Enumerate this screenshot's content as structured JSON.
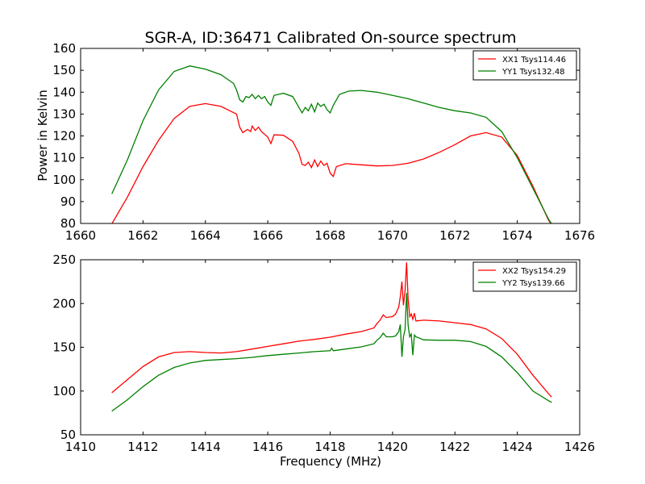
{
  "chart_data": [
    {
      "type": "line",
      "title": "SGR-A, ID:36471 Calibrated On-source spectrum",
      "xlabel": "",
      "ylabel": "Power in Kelvin",
      "xlim": [
        1660,
        1676
      ],
      "ylim": [
        80,
        160
      ],
      "xticks": [
        "1660",
        "1662",
        "1664",
        "1666",
        "1668",
        "1670",
        "1672",
        "1674",
        "1676"
      ],
      "yticks": [
        "80",
        "90",
        "100",
        "110",
        "120",
        "130",
        "140",
        "150",
        "160"
      ],
      "legend_position": "top-right",
      "grid": false,
      "series": [
        {
          "name": "XX1 Tsys114.46",
          "color": "#ff0000",
          "points": [
            [
              1661.0,
              79.8
            ],
            [
              1661.5,
              92
            ],
            [
              1662.0,
              106
            ],
            [
              1662.5,
              118
            ],
            [
              1663.0,
              128
            ],
            [
              1663.5,
              133.5
            ],
            [
              1664.0,
              134.8
            ],
            [
              1664.5,
              133.5
            ],
            [
              1665.0,
              130
            ],
            [
              1665.1,
              124
            ],
            [
              1665.2,
              121.5
            ],
            [
              1665.35,
              123
            ],
            [
              1665.45,
              122
            ],
            [
              1665.5,
              124.5
            ],
            [
              1665.6,
              122.5
            ],
            [
              1665.7,
              124
            ],
            [
              1665.8,
              122
            ],
            [
              1666.0,
              119.5
            ],
            [
              1666.1,
              116.5
            ],
            [
              1666.2,
              120.5
            ],
            [
              1666.5,
              120.3
            ],
            [
              1666.8,
              117.5
            ],
            [
              1667.0,
              112
            ],
            [
              1667.1,
              107
            ],
            [
              1667.2,
              106.5
            ],
            [
              1667.3,
              108
            ],
            [
              1667.4,
              105.5
            ],
            [
              1667.5,
              109
            ],
            [
              1667.6,
              106
            ],
            [
              1667.7,
              108.5
            ],
            [
              1667.8,
              106.5
            ],
            [
              1667.9,
              107.5
            ],
            [
              1668.0,
              103
            ],
            [
              1668.1,
              101.5
            ],
            [
              1668.2,
              106
            ],
            [
              1668.5,
              107.3
            ],
            [
              1669.0,
              106.8
            ],
            [
              1669.5,
              106.3
            ],
            [
              1670.0,
              106.5
            ],
            [
              1670.5,
              107.5
            ],
            [
              1671.0,
              109.5
            ],
            [
              1671.5,
              112.5
            ],
            [
              1672.0,
              116
            ],
            [
              1672.5,
              120
            ],
            [
              1673.0,
              121.5
            ],
            [
              1673.5,
              119.5
            ],
            [
              1674.0,
              111
            ],
            [
              1674.5,
              97
            ],
            [
              1675.0,
              81.5
            ],
            [
              1675.1,
              79.5
            ]
          ]
        },
        {
          "name": "YY1 Tsys132.48",
          "color": "#008000",
          "points": [
            [
              1661.0,
              93.5
            ],
            [
              1661.5,
              109
            ],
            [
              1662.0,
              127
            ],
            [
              1662.5,
              141
            ],
            [
              1663.0,
              149.5
            ],
            [
              1663.5,
              152
            ],
            [
              1664.0,
              150.5
            ],
            [
              1664.5,
              148
            ],
            [
              1664.9,
              144
            ],
            [
              1665.0,
              141
            ],
            [
              1665.1,
              136.5
            ],
            [
              1665.2,
              135.5
            ],
            [
              1665.3,
              138
            ],
            [
              1665.4,
              137.5
            ],
            [
              1665.5,
              139
            ],
            [
              1665.6,
              137
            ],
            [
              1665.7,
              138.5
            ],
            [
              1665.8,
              137
            ],
            [
              1665.9,
              138
            ],
            [
              1666.0,
              135.5
            ],
            [
              1666.1,
              134
            ],
            [
              1666.2,
              138.5
            ],
            [
              1666.5,
              139.5
            ],
            [
              1666.8,
              138
            ],
            [
              1667.0,
              133
            ],
            [
              1667.1,
              130.5
            ],
            [
              1667.2,
              133
            ],
            [
              1667.3,
              131.5
            ],
            [
              1667.4,
              134.5
            ],
            [
              1667.5,
              131
            ],
            [
              1667.6,
              135
            ],
            [
              1667.7,
              133.5
            ],
            [
              1667.8,
              134.5
            ],
            [
              1667.9,
              132
            ],
            [
              1668.0,
              130.5
            ],
            [
              1668.1,
              134
            ],
            [
              1668.3,
              139
            ],
            [
              1668.6,
              140.5
            ],
            [
              1669.0,
              140.8
            ],
            [
              1669.5,
              140
            ],
            [
              1670.0,
              138.5
            ],
            [
              1670.5,
              137
            ],
            [
              1671.0,
              135
            ],
            [
              1671.5,
              133
            ],
            [
              1672.0,
              131.5
            ],
            [
              1672.5,
              130.5
            ],
            [
              1673.0,
              128.5
            ],
            [
              1673.5,
              122
            ],
            [
              1674.0,
              110
            ],
            [
              1674.5,
              96
            ],
            [
              1675.0,
              82
            ],
            [
              1675.1,
              79.8
            ]
          ]
        }
      ]
    },
    {
      "type": "line",
      "title": "",
      "xlabel": "Frequency (MHz)",
      "ylabel": "",
      "xlim": [
        1410,
        1426
      ],
      "ylim": [
        50,
        250
      ],
      "xticks": [
        "1410",
        "1412",
        "1414",
        "1416",
        "1418",
        "1420",
        "1422",
        "1424",
        "1426"
      ],
      "yticks": [
        "50",
        "100",
        "150",
        "200",
        "250"
      ],
      "legend_position": "top-right",
      "grid": false,
      "series": [
        {
          "name": "XX2 Tsys154.29",
          "color": "#ff0000",
          "points": [
            [
              1411.0,
              98
            ],
            [
              1411.5,
              113
            ],
            [
              1412.0,
              128
            ],
            [
              1412.5,
              139
            ],
            [
              1413.0,
              144
            ],
            [
              1413.5,
              145
            ],
            [
              1414.0,
              144
            ],
            [
              1414.5,
              143.5
            ],
            [
              1415.0,
              145
            ],
            [
              1415.5,
              148
            ],
            [
              1416.0,
              151
            ],
            [
              1416.5,
              154
            ],
            [
              1417.0,
              157
            ],
            [
              1417.5,
              159
            ],
            [
              1418.0,
              161.5
            ],
            [
              1418.5,
              165
            ],
            [
              1419.0,
              168
            ],
            [
              1419.4,
              172
            ],
            [
              1419.5,
              177
            ],
            [
              1419.6,
              181
            ],
            [
              1419.7,
              187
            ],
            [
              1419.8,
              184
            ],
            [
              1420.0,
              185
            ],
            [
              1420.1,
              188
            ],
            [
              1420.2,
              196
            ],
            [
              1420.25,
              208
            ],
            [
              1420.3,
              225
            ],
            [
              1420.35,
              198
            ],
            [
              1420.4,
              215
            ],
            [
              1420.45,
              247
            ],
            [
              1420.5,
              205
            ],
            [
              1420.55,
              185
            ],
            [
              1420.6,
              188
            ],
            [
              1420.65,
              182
            ],
            [
              1420.7,
              189
            ],
            [
              1420.75,
              180
            ],
            [
              1421.0,
              181
            ],
            [
              1421.5,
              180
            ],
            [
              1422.0,
              178
            ],
            [
              1422.5,
              176
            ],
            [
              1423.0,
              171
            ],
            [
              1423.5,
              160
            ],
            [
              1424.0,
              142
            ],
            [
              1424.5,
              118
            ],
            [
              1425.0,
              97
            ],
            [
              1425.1,
              93
            ]
          ]
        },
        {
          "name": "YY2 Tsys139.66",
          "color": "#008000",
          "points": [
            [
              1411.0,
              77
            ],
            [
              1411.5,
              90
            ],
            [
              1412.0,
              105
            ],
            [
              1412.5,
              118
            ],
            [
              1413.0,
              127
            ],
            [
              1413.5,
              132
            ],
            [
              1414.0,
              135
            ],
            [
              1414.5,
              136
            ],
            [
              1415.0,
              137
            ],
            [
              1415.5,
              138.5
            ],
            [
              1416.0,
              140.5
            ],
            [
              1416.5,
              142
            ],
            [
              1417.0,
              143.5
            ],
            [
              1417.5,
              145
            ],
            [
              1418.0,
              146
            ],
            [
              1418.05,
              149
            ],
            [
              1418.1,
              146
            ],
            [
              1418.5,
              148
            ],
            [
              1419.0,
              150.5
            ],
            [
              1419.4,
              154
            ],
            [
              1419.5,
              158
            ],
            [
              1419.6,
              161
            ],
            [
              1419.7,
              166
            ],
            [
              1419.8,
              162
            ],
            [
              1420.0,
              162
            ],
            [
              1420.1,
              163
            ],
            [
              1420.2,
              168
            ],
            [
              1420.25,
              176
            ],
            [
              1420.3,
              139
            ],
            [
              1420.35,
              162
            ],
            [
              1420.4,
              170
            ],
            [
              1420.45,
              212
            ],
            [
              1420.5,
              175
            ],
            [
              1420.55,
              162
            ],
            [
              1420.6,
              165
            ],
            [
              1420.65,
              141
            ],
            [
              1420.7,
              164
            ],
            [
              1420.75,
              162
            ],
            [
              1421.0,
              158.5
            ],
            [
              1421.5,
              158
            ],
            [
              1422.0,
              158
            ],
            [
              1422.5,
              156.5
            ],
            [
              1423.0,
              151
            ],
            [
              1423.5,
              139
            ],
            [
              1424.0,
              121
            ],
            [
              1424.5,
              100
            ],
            [
              1425.0,
              89
            ],
            [
              1425.1,
              87
            ]
          ]
        }
      ]
    }
  ]
}
